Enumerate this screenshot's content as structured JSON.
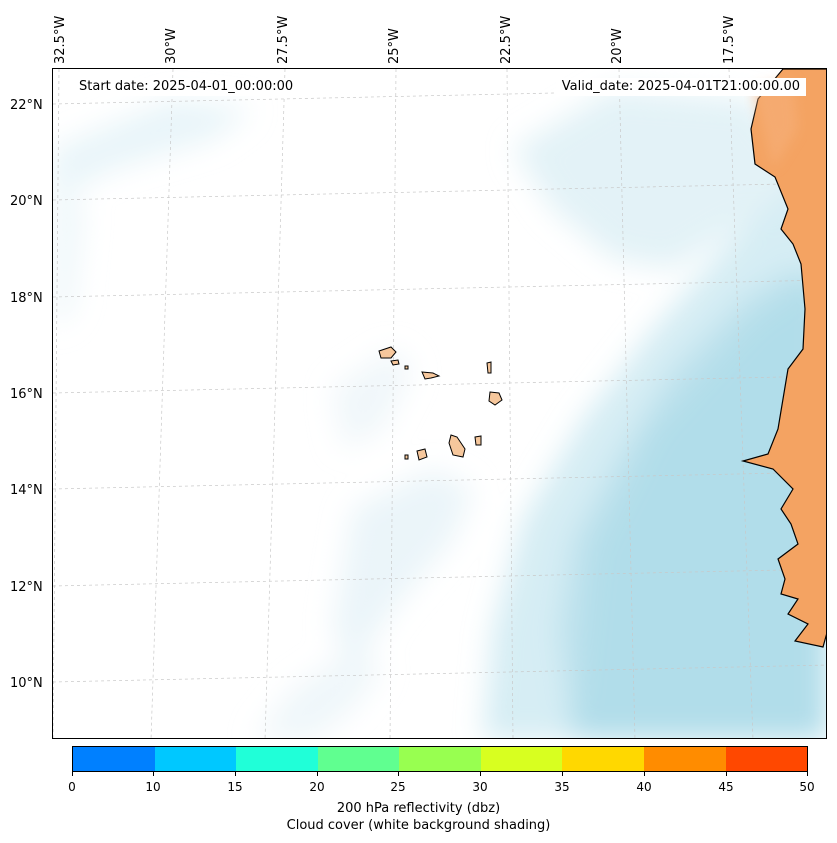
{
  "map": {
    "start_date": "Start date: 2025-04-01_00:00:00",
    "valid_date": "Valid_date: 2025-04-01T21:00:00.00",
    "longitude_labels": [
      "32.5°W",
      "30°W",
      "27.5°W",
      "25°W",
      "22.5°W",
      "20°W",
      "17.5°W"
    ],
    "latitude_labels": [
      "22°N",
      "20°N",
      "18°N",
      "16°N",
      "14°N",
      "12°N",
      "10°N"
    ]
  },
  "colorbar": {
    "ticks": [
      "0",
      "10",
      "15",
      "20",
      "25",
      "30",
      "35",
      "40",
      "45",
      "50"
    ],
    "colors": [
      "#0080ff",
      "#00c8ff",
      "#20ffd8",
      "#60ff90",
      "#98ff50",
      "#d8ff20",
      "#ffd800",
      "#ff8c00",
      "#ff4800"
    ],
    "label_line1": "200 hPa reflectivity (dbz)",
    "label_line2": "Cloud cover (white background shading)"
  },
  "style": {
    "land_color": "#f4a362",
    "island_color": "#f6c79c",
    "cloud_color": "#a9d9e8"
  }
}
